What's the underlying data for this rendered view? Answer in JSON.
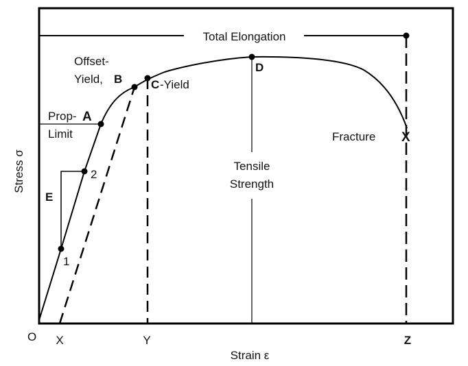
{
  "diagram": {
    "total_elongation": "Total Elongation",
    "offset_yield_line1": "Offset-",
    "offset_yield_line2": "Yield,",
    "point_b": "B",
    "point_c": "C",
    "yield": "-Yield",
    "point_d": "D",
    "prop_limit_line1": "Prop-",
    "point_a": "A",
    "prop_limit_line2": "Limit",
    "fracture": "Fracture",
    "point_x_fracture": "X",
    "point_2": "2",
    "point_1": "1",
    "e_label": "E",
    "tensile_line1": "Tensile",
    "tensile_line2": "Strength",
    "axis_y_label": "Stress σ",
    "axis_x_label": "Strain ε",
    "origin": "O",
    "tick_x": "X",
    "tick_y": "Y",
    "tick_z": "Z"
  }
}
